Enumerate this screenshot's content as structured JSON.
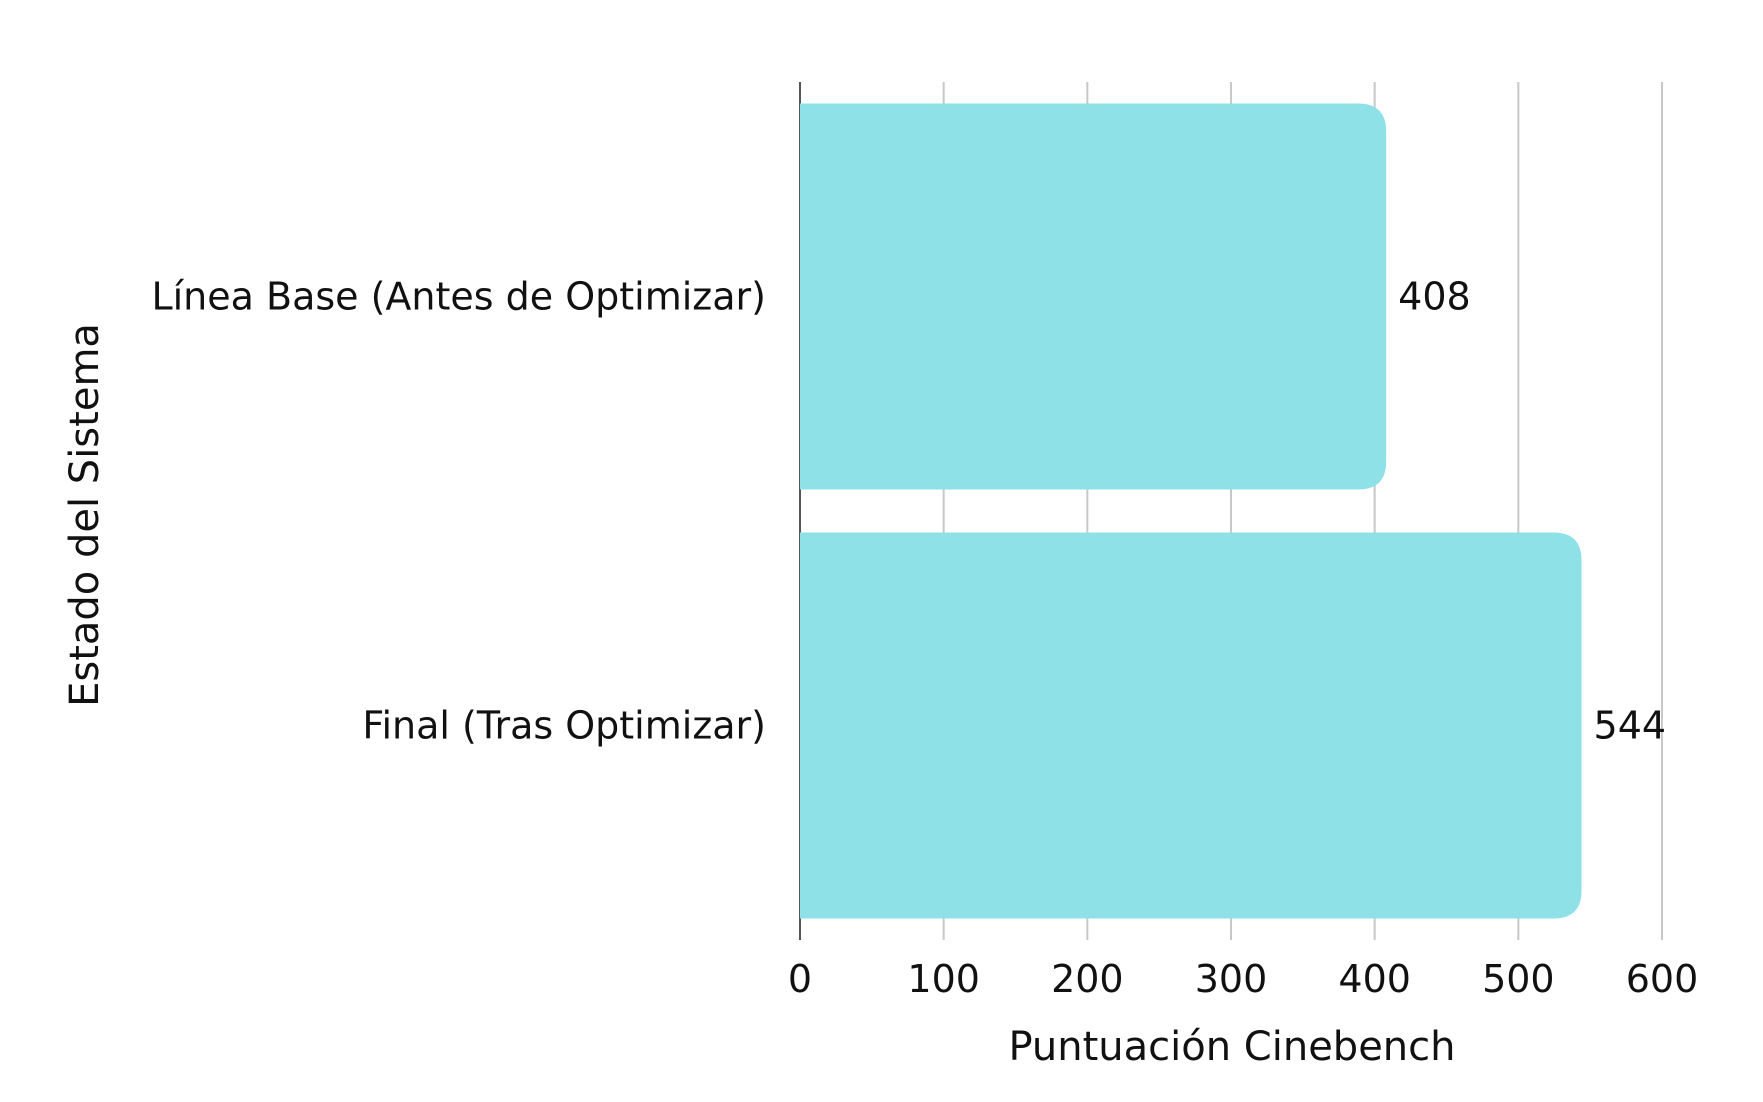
{
  "chart_data": {
    "type": "bar",
    "orientation": "horizontal",
    "categories": [
      "Línea Base (Antes de Optimizar)",
      "Final (Tras Optimizar)"
    ],
    "values": [
      408,
      544
    ],
    "value_labels": [
      "408",
      "544"
    ],
    "xlabel": "Puntuación Cinebench",
    "ylabel": "Estado del Sistema",
    "xlim": [
      0,
      600
    ],
    "xticks": [
      0,
      100,
      200,
      300,
      400,
      500,
      600
    ],
    "xtick_labels": [
      "0",
      "100",
      "200",
      "300",
      "400",
      "500",
      "600"
    ],
    "grid": "vertical",
    "bar_color": "#8ee1e6"
  }
}
